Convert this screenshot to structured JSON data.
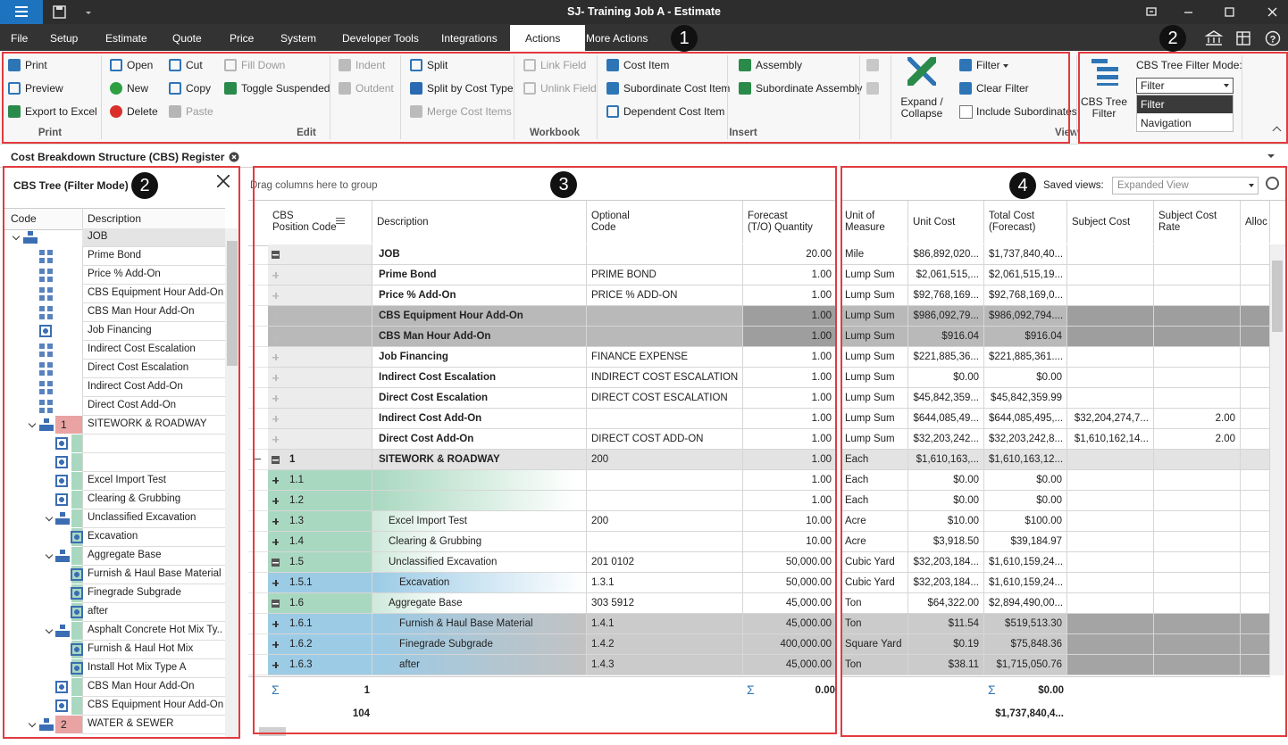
{
  "window": {
    "title": "SJ- Training Job A - Estimate"
  },
  "menu": {
    "tabs": [
      "File",
      "Setup",
      "Estimate",
      "Quote",
      "Price",
      "System",
      "Developer Tools",
      "Integrations",
      "Actions",
      "More Actions"
    ]
  },
  "callouts": [
    "1",
    "2",
    "2",
    "3",
    "4"
  ],
  "ribbon": {
    "print": {
      "label": "Print",
      "items": [
        "Print",
        "Preview",
        "Export to Excel"
      ]
    },
    "edit": {
      "label": "Edit",
      "items": [
        "Open",
        "New",
        "Delete",
        "Cut",
        "Copy",
        "Paste",
        "Fill Down",
        "Toggle Suspended",
        "Indent",
        "Outdent",
        "Split",
        "Split by Cost Type",
        "Merge Cost Items"
      ]
    },
    "workbook": {
      "label": "Workbook",
      "items": [
        "Link Field",
        "Unlink Field"
      ]
    },
    "insert": {
      "label": "Insert",
      "items": [
        "Cost Item",
        "Subordinate Cost Item",
        "Dependent Cost Item",
        "Assembly",
        "Subordinate Assembly"
      ]
    },
    "view": {
      "label": "View",
      "items": [
        "Expand / Collapse",
        "Filter",
        "Clear Filter",
        "Include Subordinates"
      ]
    },
    "filter_panel": {
      "button": "CBS Tree Filter",
      "mode_label": "CBS Tree Filter Mode:",
      "selected": "Filter",
      "options": [
        "Filter",
        "Navigation"
      ]
    }
  },
  "document_tab": "Cost Breakdown Structure (CBS) Register",
  "tree": {
    "title": "CBS Tree (Filter Mode)",
    "columns": [
      "Code",
      "Description"
    ],
    "rows": [
      {
        "code": null,
        "description": "JOB"
      },
      {
        "code": null,
        "description": "Prime Bond"
      },
      {
        "code": null,
        "description": "Price % Add-On"
      },
      {
        "code": null,
        "description": "CBS Equipment Hour Add-On"
      },
      {
        "code": null,
        "description": "CBS Man Hour Add-On"
      },
      {
        "code": null,
        "description": "Job Financing"
      },
      {
        "code": null,
        "description": "Indirect Cost Escalation"
      },
      {
        "code": null,
        "description": "Direct Cost Escalation"
      },
      {
        "code": null,
        "description": "Indirect Cost Add-On"
      },
      {
        "code": null,
        "description": "Direct Cost Add-On"
      },
      {
        "code": "1",
        "description": "SITEWORK & ROADWAY"
      },
      {
        "code": null,
        "description": null
      },
      {
        "code": null,
        "description": null
      },
      {
        "code": null,
        "description": "Excel Import Test"
      },
      {
        "code": null,
        "description": "Clearing & Grubbing"
      },
      {
        "code": null,
        "description": "Unclassified Excavation"
      },
      {
        "code": null,
        "description": "Excavation"
      },
      {
        "code": null,
        "description": "Aggregate Base"
      },
      {
        "code": null,
        "description": "Furnish & Haul Base Material"
      },
      {
        "code": null,
        "description": "Finegrade Subgrade"
      },
      {
        "code": null,
        "description": "after"
      },
      {
        "code": null,
        "description": "Asphalt Concrete Hot Mix Ty..."
      },
      {
        "code": null,
        "description": "Furnish & Haul Hot Mix"
      },
      {
        "code": null,
        "description": "Install Hot Mix Type A"
      },
      {
        "code": null,
        "description": "CBS Man Hour Add-On"
      },
      {
        "code": null,
        "description": "CBS Equipment Hour Add-On"
      },
      {
        "code": "2",
        "description": "WATER & SEWER"
      }
    ]
  },
  "grid": {
    "group_hint": "Drag columns here to group",
    "saved_views_label": "Saved views:",
    "saved_view": "Expanded View",
    "columns": {
      "code": [
        "CBS",
        "Position Code"
      ],
      "description": [
        "Description"
      ],
      "optional_code": [
        "Optional",
        "Code"
      ],
      "quantity": [
        "Forecast",
        "(T/O) Quantity"
      ],
      "unit": [
        "Unit of",
        "Measure"
      ],
      "unit_cost": [
        "Unit Cost"
      ],
      "total_cost": [
        "Total Cost",
        "(Forecast)"
      ],
      "subject_cost": [
        "Subject Cost"
      ],
      "subject_cost_rate": [
        "Subject Cost",
        "Rate"
      ],
      "allocated": [
        "Allocated"
      ]
    },
    "rows": [
      {
        "description": "JOB",
        "quantity": "20.00",
        "unit": "Mile",
        "unit_cost": "$86,892,020...",
        "total_cost": "$1,737,840,40..."
      },
      {
        "description": "Prime Bond",
        "optional_code": "PRIME BOND",
        "quantity": "1.00",
        "unit": "Lump Sum",
        "unit_cost": "$2,061,515,...",
        "total_cost": "$2,061,515,19..."
      },
      {
        "description": "Price % Add-On",
        "optional_code": "PRICE % ADD-ON",
        "quantity": "1.00",
        "unit": "Lump Sum",
        "unit_cost": "$92,768,169...",
        "total_cost": "$92,768,169,0..."
      },
      {
        "description": "CBS Equipment Hour Add-On",
        "quantity": "1.00",
        "unit": "Lump Sum",
        "unit_cost": "$986,092,79...",
        "total_cost": "$986,092,794...."
      },
      {
        "description": "CBS Man Hour Add-On",
        "quantity": "1.00",
        "unit": "Lump Sum",
        "unit_cost": "$916.04",
        "total_cost": "$916.04"
      },
      {
        "description": "Job Financing",
        "optional_code": "FINANCE EXPENSE",
        "quantity": "1.00",
        "unit": "Lump Sum",
        "unit_cost": "$221,885,36...",
        "total_cost": "$221,885,361...."
      },
      {
        "description": "Indirect Cost Escalation",
        "optional_code": "INDIRECT COST ESCALATION",
        "quantity": "1.00",
        "unit": "Lump Sum",
        "unit_cost": "$0.00",
        "total_cost": "$0.00"
      },
      {
        "description": "Direct Cost Escalation",
        "optional_code": "DIRECT COST ESCALATION",
        "quantity": "1.00",
        "unit": "Lump Sum",
        "unit_cost": "$45,842,359...",
        "total_cost": "$45,842,359.99"
      },
      {
        "description": "Indirect Cost Add-On",
        "quantity": "1.00",
        "unit": "Lump Sum",
        "unit_cost": "$644,085,49...",
        "total_cost": "$644,085,495,...",
        "subject_cost": "$32,204,274,7...",
        "subject_cost_rate": "2.00"
      },
      {
        "description": "Direct Cost Add-On",
        "optional_code": "DIRECT COST ADD-ON",
        "quantity": "1.00",
        "unit": "Lump Sum",
        "unit_cost": "$32,203,242...",
        "total_cost": "$32,203,242,8...",
        "subject_cost": "$1,610,162,14...",
        "subject_cost_rate": "2.00"
      },
      {
        "code": "1",
        "description": "SITEWORK & ROADWAY",
        "optional_code": "200",
        "quantity": "1.00",
        "unit": "Each",
        "unit_cost": "$1,610,163,...",
        "total_cost": "$1,610,163,12..."
      },
      {
        "code": "1.1",
        "quantity": "1.00",
        "unit": "Each",
        "unit_cost": "$0.00",
        "total_cost": "$0.00"
      },
      {
        "code": "1.2",
        "quantity": "1.00",
        "unit": "Each",
        "unit_cost": "$0.00",
        "total_cost": "$0.00"
      },
      {
        "code": "1.3",
        "description": "Excel Import Test",
        "optional_code": "200",
        "quantity": "10.00",
        "unit": "Acre",
        "unit_cost": "$10.00",
        "total_cost": "$100.00"
      },
      {
        "code": "1.4",
        "description": "Clearing & Grubbing",
        "quantity": "10.00",
        "unit": "Acre",
        "unit_cost": "$3,918.50",
        "total_cost": "$39,184.97"
      },
      {
        "code": "1.5",
        "description": "Unclassified Excavation",
        "optional_code": "201 0102",
        "quantity": "50,000.00",
        "unit": "Cubic Yard",
        "unit_cost": "$32,203,184...",
        "total_cost": "$1,610,159,24..."
      },
      {
        "code": "1.5.1",
        "description": "Excavation",
        "optional_code": "1.3.1",
        "quantity": "50,000.00",
        "unit": "Cubic Yard",
        "unit_cost": "$32,203,184...",
        "total_cost": "$1,610,159,24..."
      },
      {
        "code": "1.6",
        "description": "Aggregate Base",
        "optional_code": "303 5912",
        "quantity": "45,000.00",
        "unit": "Ton",
        "unit_cost": "$64,322.00",
        "total_cost": "$2,894,490,00..."
      },
      {
        "code": "1.6.1",
        "description": "Furnish & Haul Base Material",
        "optional_code": "1.4.1",
        "quantity": "45,000.00",
        "unit": "Ton",
        "unit_cost": "$11.54",
        "total_cost": "$519,513.30"
      },
      {
        "code": "1.6.2",
        "description": "Finegrade Subgrade",
        "optional_code": "1.4.2",
        "quantity": "400,000.00",
        "unit": "Square Yard",
        "unit_cost": "$0.19",
        "total_cost": "$75,848.36"
      },
      {
        "code": "1.6.3",
        "description": "after",
        "optional_code": "1.4.3",
        "quantity": "45,000.00",
        "unit": "Ton",
        "unit_cost": "$38.11",
        "total_cost": "$1,715,050.76"
      }
    ],
    "footer": {
      "sum_symbol": "Σ",
      "code_count": "1",
      "quantity_sum": "0.00",
      "row_count": "104",
      "total_cost_sum": "$0.00",
      "total_cost_total": "$1,737,840,4..."
    }
  }
}
